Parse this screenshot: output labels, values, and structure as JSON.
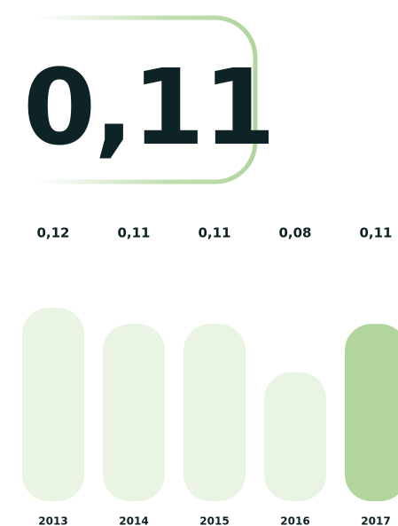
{
  "headline": "0,11",
  "chart_data": {
    "type": "bar",
    "categories": [
      "2013",
      "2014",
      "2015",
      "2016",
      "2017"
    ],
    "values": [
      0.12,
      0.11,
      0.11,
      0.08,
      0.11
    ],
    "value_labels": [
      "0,12",
      "0,11",
      "0,11",
      "0,08",
      "0,11"
    ],
    "colors": [
      "#eaf4e3",
      "#eaf4e3",
      "#eaf4e3",
      "#eaf4e3",
      "#b2d59d"
    ]
  }
}
